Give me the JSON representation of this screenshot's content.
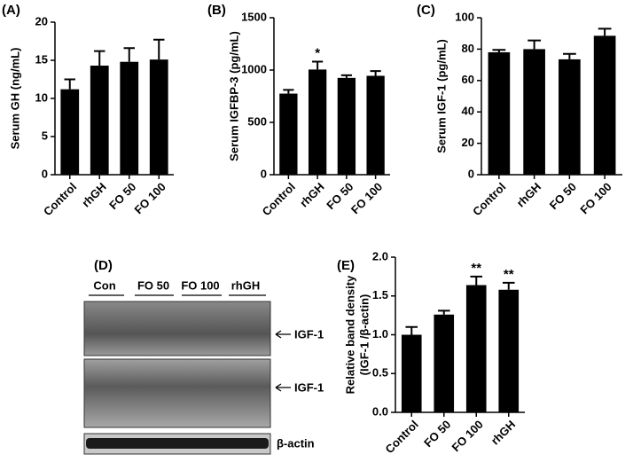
{
  "chart_data": [
    {
      "type": "bar",
      "panel": "(A)",
      "ylabel": "Serum GH (ng/mL)",
      "categories": [
        "Control",
        "rhGH",
        "FO 50",
        "FO 100"
      ],
      "values": [
        11.2,
        14.3,
        14.8,
        15.1
      ],
      "errors": [
        1.3,
        1.9,
        1.8,
        2.6
      ],
      "color": "#000000",
      "ylim": [
        0,
        20
      ],
      "yticks": [
        0,
        5,
        10,
        15,
        20
      ]
    },
    {
      "type": "bar",
      "panel": "(B)",
      "ylabel": "Serum IGFBP-3 (pg/mL)",
      "categories": [
        "Control",
        "rhGH",
        "FO 50",
        "FO 100"
      ],
      "values": [
        775,
        1005,
        925,
        945
      ],
      "errors": [
        35,
        75,
        25,
        45
      ],
      "annotations": [
        null,
        "*",
        null,
        null
      ],
      "color": "#000000",
      "ylim": [
        0,
        1500
      ],
      "yticks": [
        0,
        500,
        1000,
        1500
      ]
    },
    {
      "type": "bar",
      "panel": "(C)",
      "ylabel": "Serum IGF-1 (pg/mL)",
      "categories": [
        "Control",
        "rhGH",
        "FO 50",
        "FO 100"
      ],
      "values": [
        78,
        80,
        73.5,
        88.5
      ],
      "errors": [
        1.5,
        5.5,
        3.5,
        4.5
      ],
      "color": "#000000",
      "ylim": [
        0,
        100
      ],
      "yticks": [
        0,
        20,
        40,
        60,
        80,
        100
      ]
    },
    {
      "type": "bar",
      "panel": "(E)",
      "ylabel": [
        "Relative band density",
        "(IGF-1 /β-actin)"
      ],
      "categories": [
        "Control",
        "FO 50",
        "FO 100",
        "rhGH"
      ],
      "values": [
        1.0,
        1.26,
        1.64,
        1.58
      ],
      "errors": [
        0.1,
        0.05,
        0.11,
        0.09
      ],
      "annotations": [
        null,
        null,
        "**",
        "**"
      ],
      "color": "#000000",
      "ylim": [
        0,
        2
      ],
      "yticks": [
        {
          "value": 0,
          "label": "0.0"
        },
        {
          "value": 0.5,
          "label": "0.5"
        },
        {
          "value": 1,
          "label": "1.0"
        },
        {
          "value": 1.5,
          "label": "1.5"
        },
        {
          "value": 2,
          "label": "2.0"
        }
      ]
    }
  ],
  "blot": {
    "panel": "(D)",
    "groups": [
      "Con",
      "FO 50",
      "FO 100",
      "rhGH"
    ],
    "bands": [
      "IGF-1",
      "IGF-1",
      "β-actin"
    ]
  }
}
